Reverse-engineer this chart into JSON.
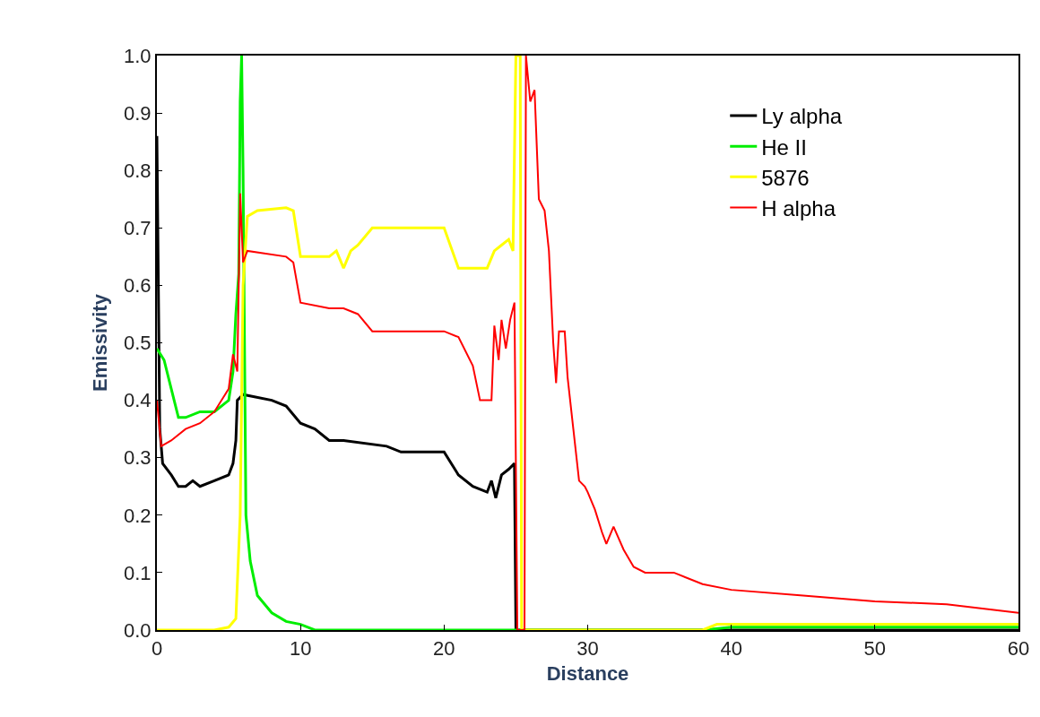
{
  "chart_data": {
    "type": "line",
    "xlabel": "Distance",
    "ylabel": "Emissivity",
    "xlim": [
      0,
      60
    ],
    "xticks": [
      0,
      10,
      20,
      30,
      40,
      50,
      60
    ],
    "ylim": [
      0,
      1.0
    ],
    "yticks": [
      {
        "value": 0,
        "label": "0.0"
      },
      0.1,
      0.2,
      0.3,
      0.4,
      0.5,
      0.6,
      0.7,
      0.8,
      0.9,
      {
        "value": 1,
        "label": "1.0"
      }
    ],
    "legend": "top right",
    "marker": "none",
    "line_style": "solid",
    "series": [
      {
        "name": "Ly alpha",
        "color": "#000000",
        "x": [
          0,
          0.2,
          0.4,
          1,
          1.5,
          2,
          2.5,
          3,
          4,
          5,
          5.3,
          5.5,
          5.6,
          6,
          8,
          9,
          10,
          11,
          12,
          13,
          16,
          17,
          20,
          21,
          22,
          23,
          23.3,
          23.6,
          24,
          24.5,
          24.9,
          25,
          30,
          60
        ],
        "values": [
          0.86,
          0.35,
          0.29,
          0.27,
          0.25,
          0.25,
          0.26,
          0.25,
          0.26,
          0.27,
          0.29,
          0.33,
          0.4,
          0.41,
          0.4,
          0.39,
          0.36,
          0.35,
          0.33,
          0.33,
          0.32,
          0.31,
          0.31,
          0.27,
          0.25,
          0.24,
          0.26,
          0.23,
          0.27,
          0.28,
          0.29,
          0.0,
          0.0,
          0.0
        ]
      },
      {
        "name": "He II",
        "color": "#00ee00",
        "x": [
          0,
          0.5,
          1,
          1.5,
          2,
          3,
          4,
          5,
          5.3,
          5.5,
          5.7,
          5.8,
          5.9,
          6,
          6.2,
          6.5,
          7,
          8,
          9,
          10,
          11,
          25,
          38,
          40,
          60
        ],
        "values": [
          0.49,
          0.47,
          0.42,
          0.37,
          0.37,
          0.38,
          0.38,
          0.4,
          0.45,
          0.55,
          0.62,
          0.92,
          1.0,
          0.8,
          0.2,
          0.12,
          0.06,
          0.03,
          0.015,
          0.01,
          0.0,
          0.0,
          0.0,
          0.005,
          0.005
        ]
      },
      {
        "name": "5876",
        "color": "#ffff00",
        "x": [
          0,
          4,
          5,
          5.5,
          5.8,
          6,
          6.3,
          7,
          9,
          9.5,
          10,
          12,
          12.5,
          13,
          13.5,
          14,
          15,
          17,
          19,
          20,
          21,
          23,
          23.5,
          24,
          24.5,
          24.8,
          25,
          25.3,
          25.4,
          38,
          39,
          60
        ],
        "values": [
          0.0,
          0.0,
          0.005,
          0.02,
          0.2,
          0.6,
          0.72,
          0.73,
          0.735,
          0.73,
          0.65,
          0.65,
          0.66,
          0.63,
          0.66,
          0.67,
          0.7,
          0.7,
          0.7,
          0.7,
          0.63,
          0.63,
          0.66,
          0.67,
          0.68,
          0.66,
          1.0,
          1.0,
          0.0,
          0.0,
          0.01,
          0.01
        ]
      },
      {
        "name": "H alpha",
        "color": "#ff0000",
        "x": [
          0,
          0.3,
          1,
          2,
          3,
          4,
          5,
          5.3,
          5.6,
          5.8,
          6,
          6.3,
          9,
          9.5,
          10,
          12,
          13,
          14,
          15,
          20,
          21,
          22,
          22.5,
          23.3,
          23.5,
          23.8,
          24,
          24.3,
          24.6,
          24.9,
          25.1,
          25.6,
          25.7,
          26,
          26.3,
          26.6,
          27,
          27.3,
          27.6,
          27.8,
          28,
          28.4,
          28.6,
          29,
          29.4,
          29.8,
          30,
          30.5,
          31,
          31.3,
          31.8,
          32.5,
          33.2,
          34,
          36,
          38,
          40,
          45,
          50,
          55,
          60
        ],
        "values": [
          0.4,
          0.32,
          0.33,
          0.35,
          0.36,
          0.38,
          0.42,
          0.48,
          0.45,
          0.76,
          0.64,
          0.66,
          0.65,
          0.64,
          0.57,
          0.56,
          0.56,
          0.55,
          0.52,
          0.52,
          0.51,
          0.46,
          0.4,
          0.4,
          0.53,
          0.47,
          0.54,
          0.49,
          0.54,
          0.57,
          0.0,
          0.0,
          1.0,
          0.92,
          0.94,
          0.75,
          0.73,
          0.66,
          0.5,
          0.43,
          0.52,
          0.52,
          0.44,
          0.35,
          0.26,
          0.25,
          0.24,
          0.21,
          0.17,
          0.15,
          0.18,
          0.14,
          0.11,
          0.1,
          0.1,
          0.08,
          0.07,
          0.06,
          0.05,
          0.045,
          0.03
        ]
      }
    ]
  }
}
